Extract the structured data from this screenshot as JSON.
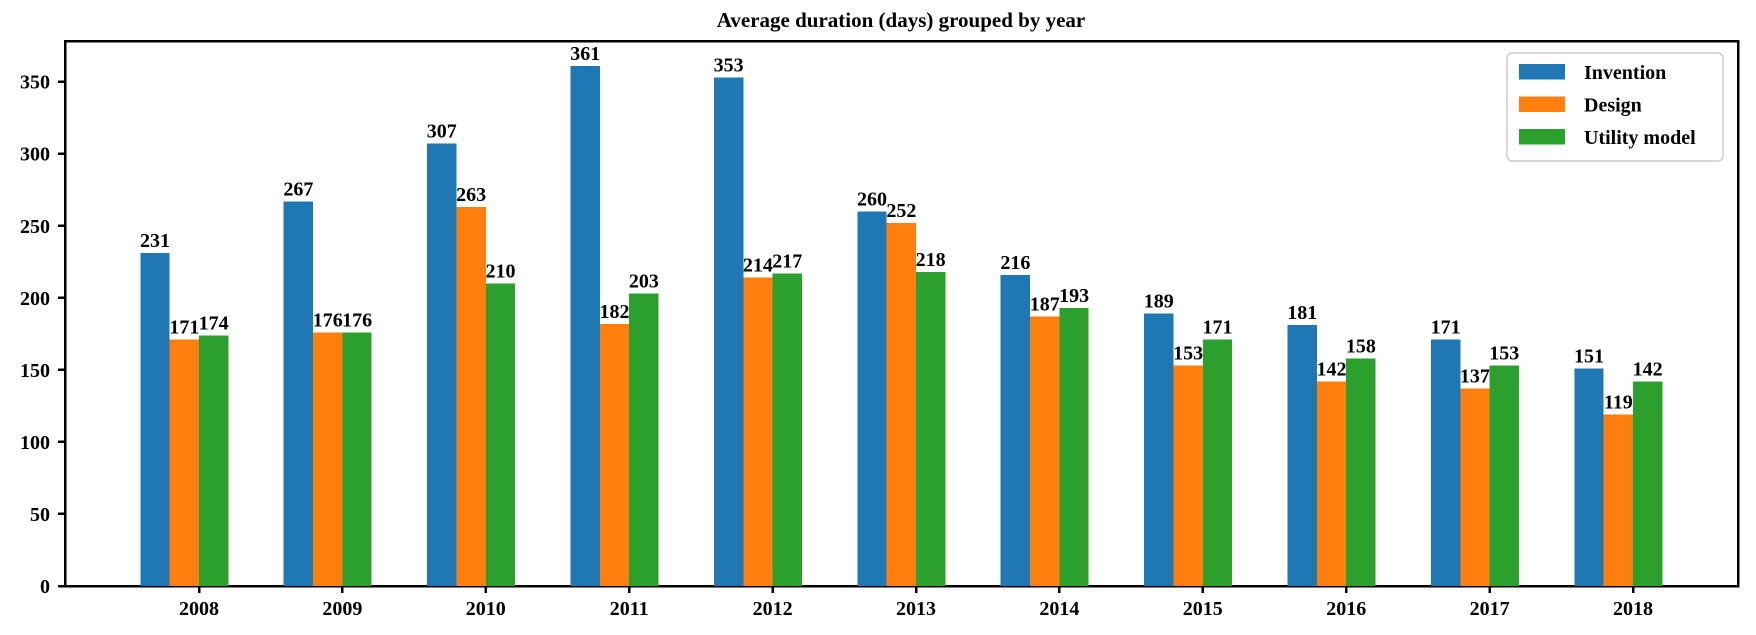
{
  "chart_data": {
    "type": "bar",
    "title": "Average duration (days) grouped by year",
    "xlabel": "",
    "ylabel": "",
    "categories": [
      "2008",
      "2009",
      "2010",
      "2011",
      "2012",
      "2013",
      "2014",
      "2015",
      "2016",
      "2017",
      "2018"
    ],
    "series": [
      {
        "name": "Invention",
        "color": "#1f77b4",
        "values": [
          231,
          267,
          307,
          361,
          353,
          260,
          216,
          189,
          181,
          171,
          151
        ]
      },
      {
        "name": "Design",
        "color": "#ff7f0e",
        "values": [
          171,
          176,
          263,
          182,
          214,
          252,
          187,
          153,
          142,
          137,
          119
        ]
      },
      {
        "name": "Utility model",
        "color": "#2ca02c",
        "values": [
          174,
          176,
          210,
          203,
          217,
          218,
          193,
          171,
          158,
          153,
          142
        ]
      }
    ],
    "yticks": [
      0,
      50,
      100,
      150,
      200,
      250,
      300,
      350
    ],
    "ylim": [
      0,
      378
    ],
    "grid": false,
    "bar_value_labels": true,
    "legend": {
      "position": "upper right",
      "border_color": "#cccccc",
      "background_color": "#ffffff",
      "entries": [
        "Invention",
        "Design",
        "Utility model"
      ]
    },
    "text_color": "#000000",
    "axis_color": "#000000"
  }
}
